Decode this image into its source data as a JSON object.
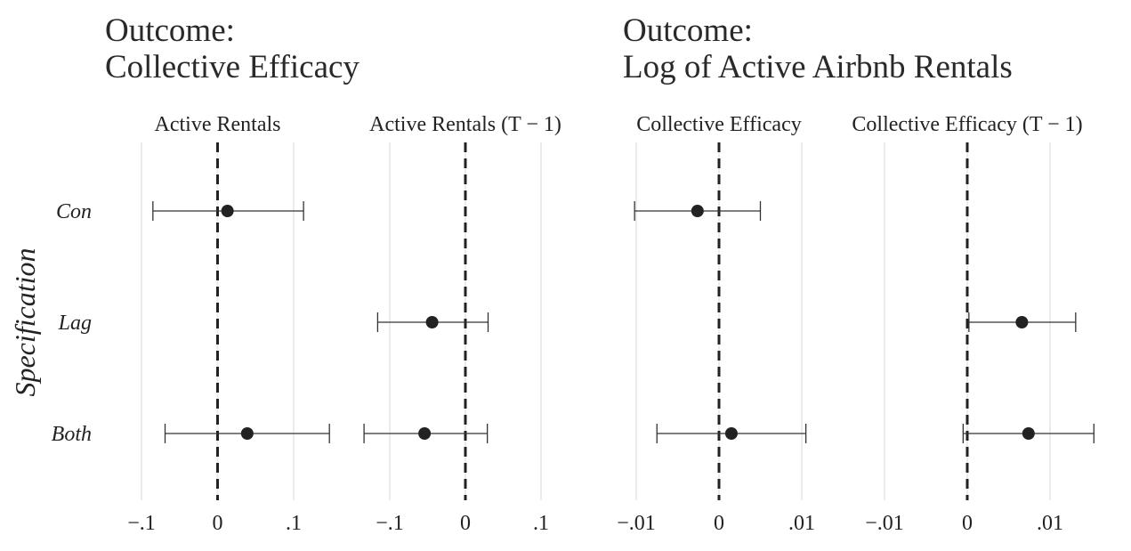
{
  "titles": {
    "left": {
      "line1": "Outcome:",
      "line2": "Collective Efficacy"
    },
    "right": {
      "line1": "Outcome:",
      "line2": "Log of Active Airbnb Rentals"
    }
  },
  "colors": {
    "point": "#222222",
    "errorbar": "#333333",
    "zero_line": "#222222",
    "grid": "#ebebeb"
  },
  "chart_data": [
    {
      "type": "scatter",
      "subtype": "coefficient-plot-with-error-bars",
      "outcome": "Collective Efficacy",
      "ylabel": "Specification",
      "y_categories": [
        "Con",
        "Lag",
        "Both"
      ],
      "panels": [
        {
          "strip_label": "Active Rentals",
          "xlim": [
            -0.1,
            0.1
          ],
          "ticks": [
            -0.1,
            0,
            0.1
          ],
          "tick_labels": [
            "−.1",
            "0",
            ".1"
          ],
          "points": [
            {
              "spec": "Con",
              "estimate": 0.013,
              "lower": -0.085,
              "upper": 0.113
            },
            {
              "spec": "Both",
              "estimate": 0.039,
              "lower": -0.069,
              "upper": 0.147
            }
          ]
        },
        {
          "strip_label": "Active Rentals (T − 1)",
          "xlim": [
            -0.1,
            0.1
          ],
          "ticks": [
            -0.1,
            0,
            0.1
          ],
          "tick_labels": [
            "−.1",
            "0",
            ".1"
          ],
          "points": [
            {
              "spec": "Lag",
              "estimate": -0.044,
              "lower": -0.116,
              "upper": 0.03
            },
            {
              "spec": "Both",
              "estimate": -0.054,
              "lower": -0.134,
              "upper": 0.029
            }
          ]
        }
      ]
    },
    {
      "type": "scatter",
      "subtype": "coefficient-plot-with-error-bars",
      "outcome": "Log of Active Airbnb Rentals",
      "y_categories": [
        "Con",
        "Lag",
        "Both"
      ],
      "panels": [
        {
          "strip_label": "Collective Efficacy",
          "xlim": [
            -0.01,
            0.01
          ],
          "ticks": [
            -0.01,
            0,
            0.01
          ],
          "tick_labels": [
            "−.01",
            "0",
            ".01"
          ],
          "points": [
            {
              "spec": "Con",
              "estimate": -0.0026,
              "lower": -0.0102,
              "upper": 0.005
            },
            {
              "spec": "Both",
              "estimate": 0.0015,
              "lower": -0.0075,
              "upper": 0.0105
            }
          ]
        },
        {
          "strip_label": "Collective Efficacy (T − 1)",
          "xlim": [
            -0.01,
            0.01
          ],
          "ticks": [
            -0.01,
            0,
            0.01
          ],
          "tick_labels": [
            "−.01",
            "0",
            ".01"
          ],
          "points": [
            {
              "spec": "Lag",
              "estimate": 0.0066,
              "lower": 0.0002,
              "upper": 0.0131
            },
            {
              "spec": "Both",
              "estimate": 0.0074,
              "lower": -0.0005,
              "upper": 0.0153
            }
          ]
        }
      ]
    }
  ]
}
